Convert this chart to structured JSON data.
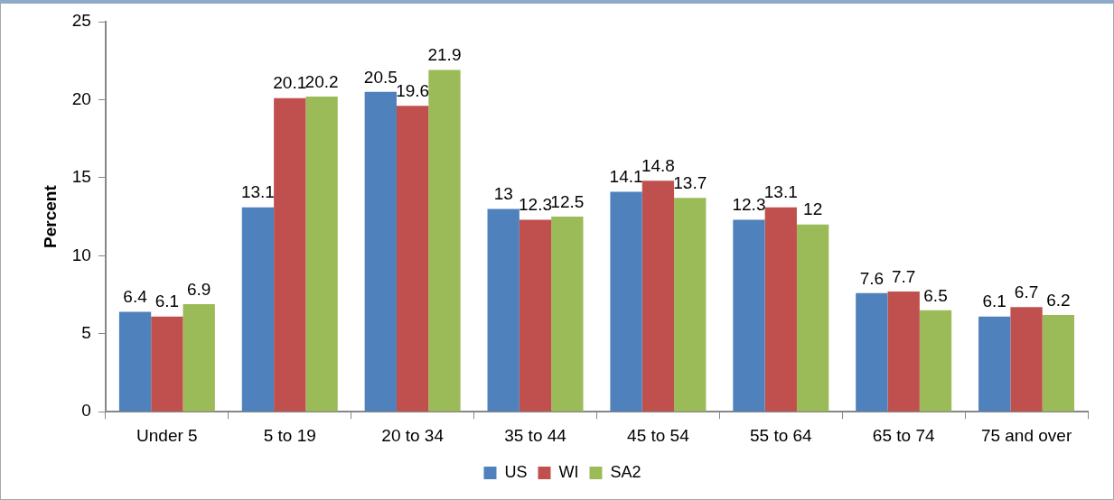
{
  "chart_data": {
    "type": "bar",
    "ylabel": "Percent",
    "categories": [
      "Under 5",
      "5 to 19",
      "20 to 34",
      "35 to 44",
      "45 to 54",
      "55 to 64",
      "65 to 74",
      "75 and over"
    ],
    "series": [
      {
        "name": "US",
        "color": "#4f81bd",
        "values": [
          6.4,
          13.1,
          20.5,
          13,
          14.1,
          12.3,
          7.6,
          6.1
        ]
      },
      {
        "name": "WI",
        "color": "#c0504d",
        "values": [
          6.1,
          20.1,
          19.6,
          12.3,
          14.8,
          13.1,
          7.7,
          6.7
        ]
      },
      {
        "name": "SA2",
        "color": "#9bbb59",
        "values": [
          6.9,
          20.2,
          21.9,
          12.5,
          13.7,
          12,
          6.5,
          6.2
        ]
      }
    ],
    "ylim": [
      0,
      25
    ],
    "yticks": [
      0,
      5,
      10,
      15,
      20,
      25
    ],
    "grid": false,
    "legend": "bottom",
    "data_labels": true
  }
}
